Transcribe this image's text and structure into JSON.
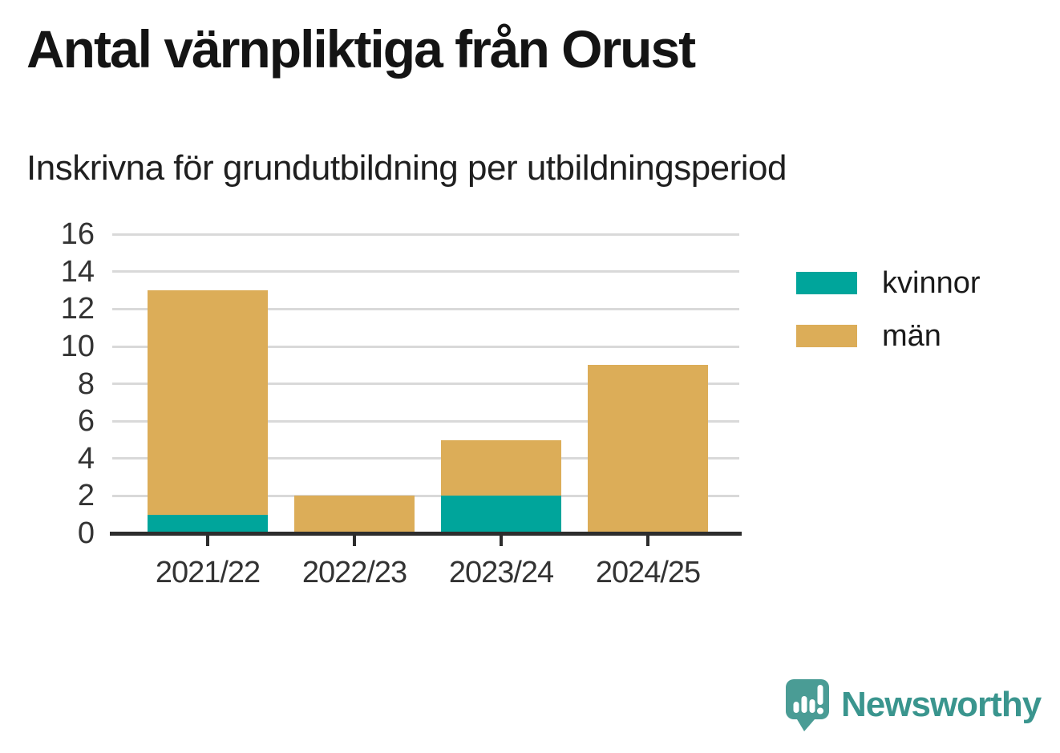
{
  "chart_data": {
    "type": "bar",
    "stacked": true,
    "title": "Antal värnpliktiga från Orust",
    "subtitle": "Inskrivna för grundutbildning per utbildningsperiod",
    "categories": [
      "2021/22",
      "2022/23",
      "2023/24",
      "2024/25"
    ],
    "series": [
      {
        "name": "kvinnor",
        "color": "#00a59b",
        "values": [
          1,
          0,
          2,
          0
        ]
      },
      {
        "name": "män",
        "color": "#dcad58",
        "values": [
          12,
          2,
          3,
          9
        ]
      }
    ],
    "xlabel": "",
    "ylabel": "",
    "ylim": [
      0,
      16
    ],
    "yticks": [
      0,
      2,
      4,
      6,
      8,
      10,
      12,
      14,
      16
    ],
    "grid": true,
    "legend_position": "right"
  },
  "branding": {
    "logo_text": "Newsworthy",
    "logo_icon": "newsworthy-chart-bubble-icon",
    "wordmark_color": "#3a958e",
    "icon_color": "#4a9c95"
  },
  "style": {
    "background": "#ffffff",
    "grid_color": "#d9d9d9",
    "axis_color": "#2d2d2d",
    "tick_label_color": "#333333",
    "legend_text_color": "#1a1a1a"
  }
}
